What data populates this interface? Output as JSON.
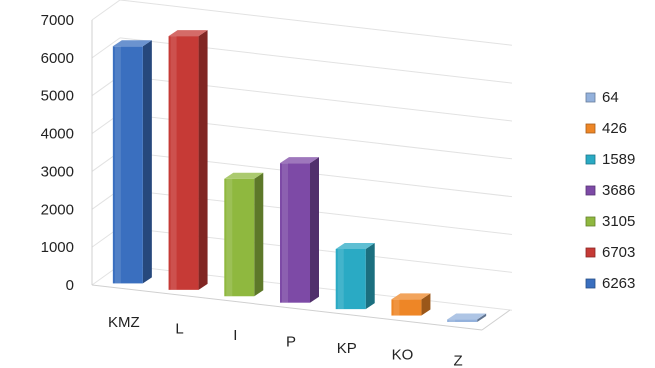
{
  "chart_data": {
    "type": "bar",
    "style": "3d-column",
    "categories": [
      "KMZ",
      "L",
      "I",
      "P",
      "KP",
      "KO",
      "Z"
    ],
    "values": [
      6263,
      6703,
      3105,
      3686,
      1589,
      426,
      64
    ],
    "colors": [
      "#3a6fbf",
      "#c63a36",
      "#8fb83f",
      "#7d4aa6",
      "#2aaac4",
      "#ee8626",
      "#93b1dc"
    ],
    "ylim": [
      0,
      7000
    ],
    "yticks": [
      0,
      1000,
      2000,
      3000,
      4000,
      5000,
      6000,
      7000
    ],
    "grid": true,
    "legend_position": "right",
    "legend_order": [
      "Z",
      "KO",
      "KP",
      "P",
      "I",
      "L",
      "KMZ"
    ]
  }
}
